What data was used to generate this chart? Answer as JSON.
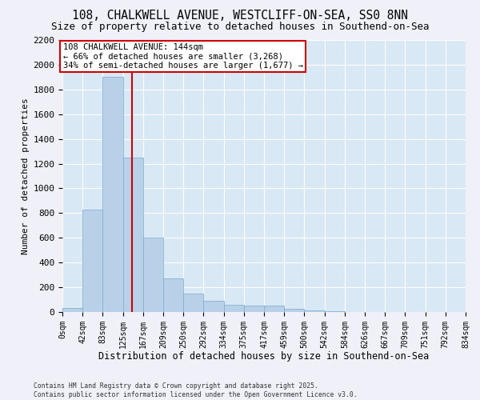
{
  "title1": "108, CHALKWELL AVENUE, WESTCLIFF-ON-SEA, SS0 8NN",
  "title2": "Size of property relative to detached houses in Southend-on-Sea",
  "xlabel": "Distribution of detached houses by size in Southend-on-Sea",
  "ylabel": "Number of detached properties",
  "bar_edges": [
    0,
    42,
    83,
    125,
    167,
    209,
    250,
    292,
    334,
    375,
    417,
    459,
    500,
    542,
    584,
    626,
    667,
    709,
    751,
    792,
    834
  ],
  "bar_heights": [
    30,
    830,
    1900,
    1250,
    600,
    270,
    150,
    90,
    60,
    55,
    50,
    25,
    15,
    5,
    0,
    0,
    0,
    0,
    0,
    0
  ],
  "bar_color": "#b8d0e8",
  "bar_edgecolor": "#7aaacb",
  "vline_x": 144,
  "vline_color": "#cc0000",
  "annotation_title": "108 CHALKWELL AVENUE: 144sqm",
  "annotation_line1": "← 66% of detached houses are smaller (3,268)",
  "annotation_line2": "34% of semi-detached houses are larger (1,677) →",
  "annotation_box_color": "#cc0000",
  "ylim": [
    0,
    2200
  ],
  "yticks": [
    0,
    200,
    400,
    600,
    800,
    1000,
    1200,
    1400,
    1600,
    1800,
    2000,
    2200
  ],
  "background_color": "#d8e8f4",
  "tick_labels": [
    "0sqm",
    "42sqm",
    "83sqm",
    "125sqm",
    "167sqm",
    "209sqm",
    "250sqm",
    "292sqm",
    "334sqm",
    "375sqm",
    "417sqm",
    "459sqm",
    "500sqm",
    "542sqm",
    "584sqm",
    "626sqm",
    "667sqm",
    "709sqm",
    "751sqm",
    "792sqm",
    "834sqm"
  ],
  "footer": "Contains HM Land Registry data © Crown copyright and database right 2025.\nContains public sector information licensed under the Open Government Licence v3.0.",
  "fig_bg": "#f0f0f8"
}
